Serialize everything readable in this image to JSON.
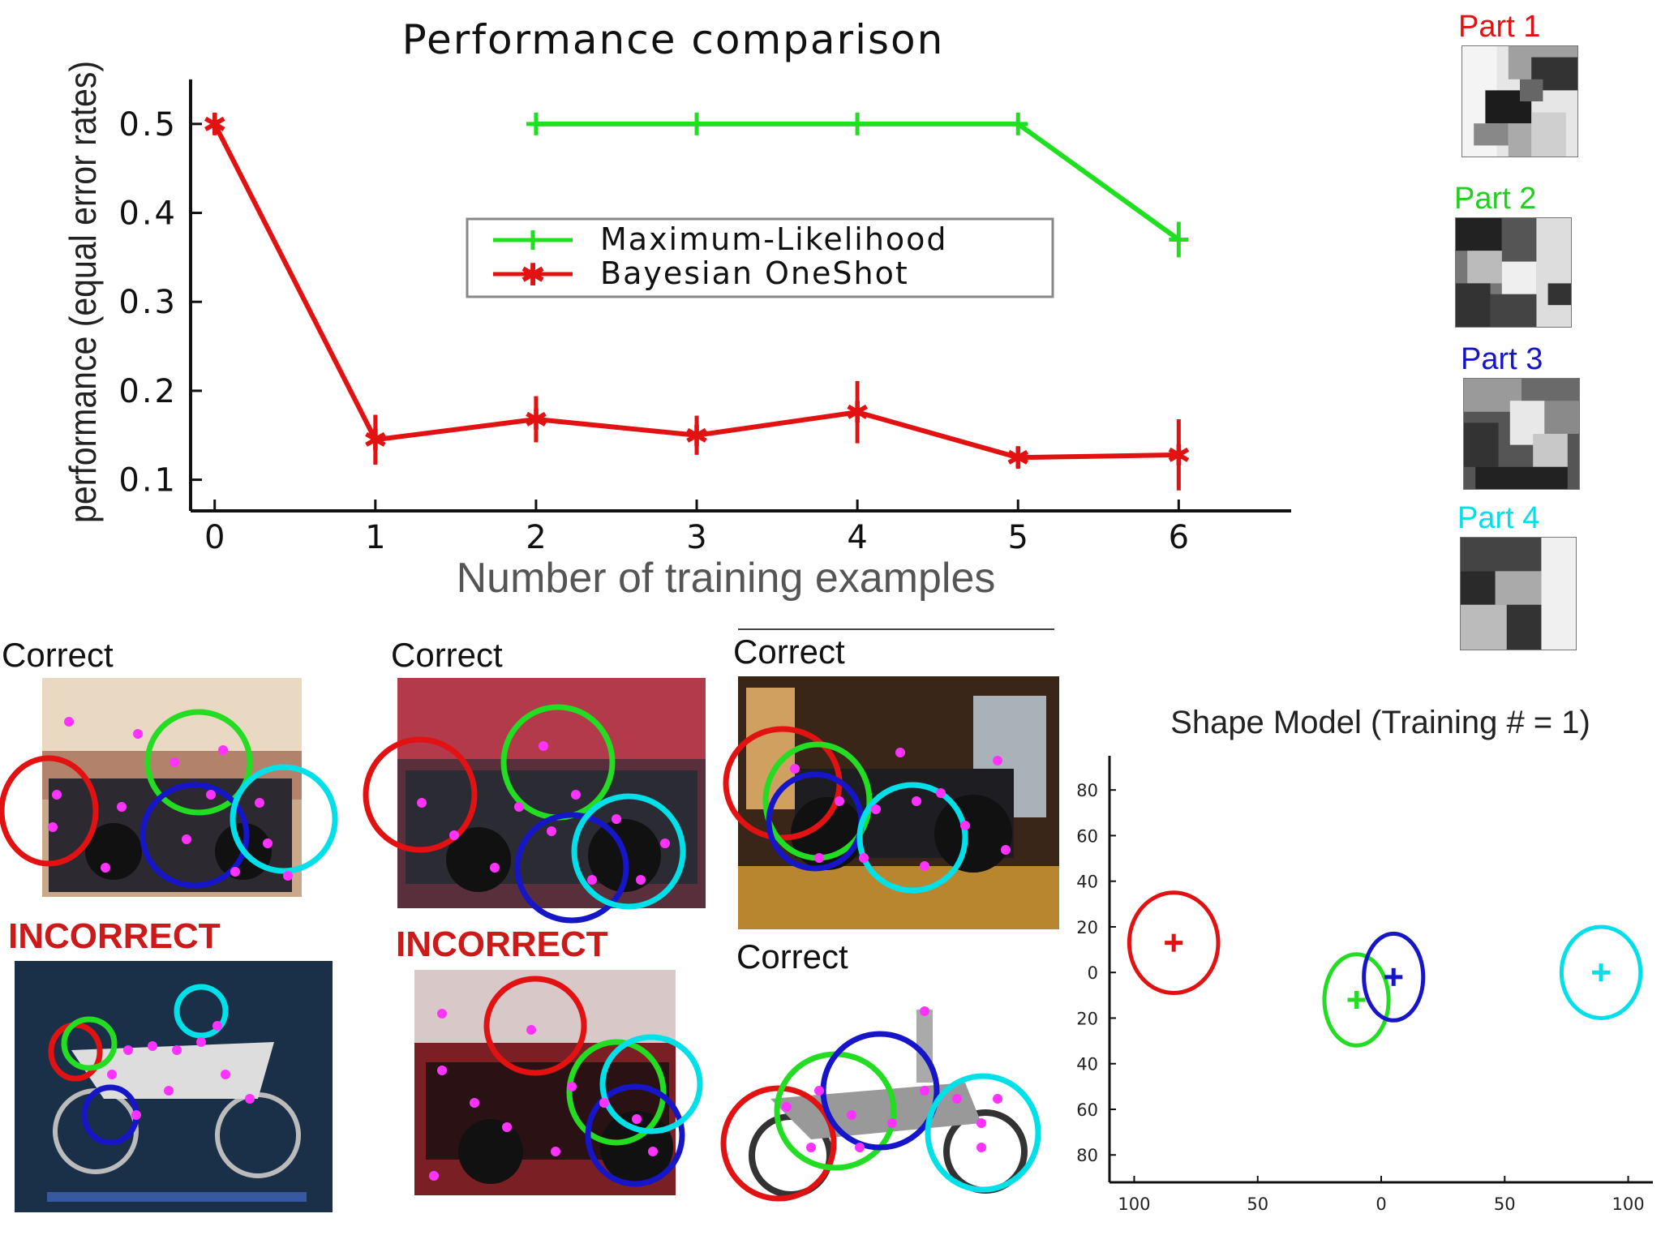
{
  "chart_data": [
    {
      "type": "line",
      "title": "Performance comparison",
      "xlabel": "Number of training examples",
      "ylabel": "performance (equal error rates)",
      "x_ticks": [
        "0",
        "1",
        "2",
        "3",
        "4",
        "5",
        "6"
      ],
      "y_ticks": [
        "0.1",
        "0.2",
        "0.3",
        "0.4",
        "0.5"
      ],
      "xlim": [
        -0.15,
        6.7
      ],
      "ylim": [
        0.065,
        0.55
      ],
      "legend_position": "center",
      "series": [
        {
          "name": "Maximum-Likelihood",
          "color": "#1fe01f",
          "marker": "plus",
          "x": [
            2,
            3,
            4,
            5,
            6
          ],
          "values": [
            0.5,
            0.5,
            0.5,
            0.5,
            0.37
          ],
          "error": [
            0,
            0,
            0,
            0,
            0.02
          ]
        },
        {
          "name": "Bayesian OneShot",
          "color": "#e31212",
          "marker": "star",
          "x": [
            0,
            1,
            2,
            3,
            4,
            5,
            6
          ],
          "values": [
            0.5,
            0.145,
            0.168,
            0.15,
            0.176,
            0.125,
            0.128
          ],
          "error": [
            0,
            0.028,
            0.026,
            0.022,
            0.035,
            0.008,
            0.04
          ]
        }
      ]
    },
    {
      "type": "scatter",
      "title": "Shape Model (Training # = 1)",
      "x_ticks": [
        "100",
        "50",
        "0",
        "50",
        "100"
      ],
      "y_ticks": [
        "80",
        "60",
        "40",
        "20",
        "0",
        "20",
        "40",
        "60",
        "80"
      ],
      "xlim": [
        110,
        -110
      ],
      "ylim": [
        -92,
        95
      ],
      "parts": [
        {
          "name": "Part 1",
          "color": "#e31212",
          "x": 84,
          "y": 13,
          "rx": 18,
          "ry": 22
        },
        {
          "name": "Part 2",
          "color": "#22dd22",
          "x": 10,
          "y": -12,
          "rx": 13,
          "ry": 20
        },
        {
          "name": "Part 3",
          "color": "#1616c8",
          "x": -5,
          "y": -2,
          "rx": 12,
          "ry": 19
        },
        {
          "name": "Part 4",
          "color": "#00e0e8",
          "x": -89,
          "y": 0,
          "rx": 16,
          "ry": 20
        }
      ]
    }
  ],
  "parts_panel": [
    {
      "label": "Part 1",
      "color": "#e31212"
    },
    {
      "label": "Part 2",
      "color": "#1fd01f"
    },
    {
      "label": "Part 3",
      "color": "#1616c8"
    },
    {
      "label": "Part 4",
      "color": "#00e0e8"
    }
  ],
  "examples": [
    {
      "status": "Correct"
    },
    {
      "status": "Correct"
    },
    {
      "status": "Correct"
    },
    {
      "status": "INCORRECT"
    },
    {
      "status": "INCORRECT"
    },
    {
      "status": "Correct"
    }
  ]
}
